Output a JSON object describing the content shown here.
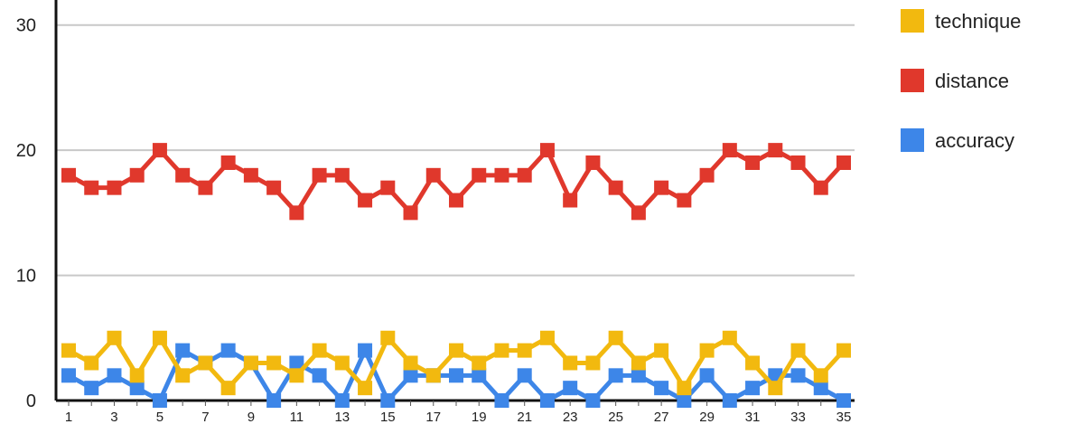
{
  "chart_data": {
    "type": "line",
    "title": "",
    "xlabel": "",
    "ylabel": "",
    "x": [
      1,
      2,
      3,
      4,
      5,
      6,
      7,
      8,
      9,
      10,
      11,
      12,
      13,
      14,
      15,
      16,
      17,
      18,
      19,
      20,
      21,
      22,
      23,
      24,
      25,
      26,
      27,
      28,
      29,
      30,
      31,
      32,
      33,
      34,
      35
    ],
    "x_tick_labels": [
      "1",
      "3",
      "5",
      "7",
      "9",
      "11",
      "13",
      "15",
      "17",
      "19",
      "21",
      "23",
      "25",
      "27",
      "29",
      "31",
      "33",
      "35"
    ],
    "y_ticks": [
      0,
      10,
      20,
      30
    ],
    "ylim": [
      0,
      32
    ],
    "xlim": [
      1,
      35
    ],
    "grid": "horizontal",
    "legend_position": "right",
    "series": [
      {
        "name": "technique",
        "color": "#f2b90f",
        "values": [
          4,
          3,
          5,
          2,
          5,
          2,
          3,
          1,
          3,
          3,
          2,
          4,
          3,
          1,
          5,
          3,
          2,
          4,
          3,
          4,
          4,
          5,
          3,
          3,
          5,
          3,
          4,
          1,
          4,
          5,
          3,
          1,
          4,
          2,
          4
        ]
      },
      {
        "name": "distance",
        "color": "#e0382c",
        "values": [
          18,
          17,
          17,
          18,
          20,
          18,
          17,
          19,
          18,
          17,
          15,
          18,
          18,
          16,
          17,
          15,
          18,
          16,
          18,
          18,
          18,
          20,
          16,
          19,
          17,
          15,
          17,
          16,
          18,
          20,
          19,
          20,
          19,
          17,
          19
        ]
      },
      {
        "name": "accuracy",
        "color": "#3d86e8",
        "values": [
          2,
          1,
          2,
          1,
          0,
          4,
          3,
          4,
          3,
          0,
          3,
          2,
          0,
          4,
          0,
          2,
          2,
          2,
          2,
          0,
          2,
          0,
          1,
          0,
          2,
          2,
          1,
          0,
          2,
          0,
          1,
          2,
          2,
          1,
          0
        ]
      }
    ]
  }
}
